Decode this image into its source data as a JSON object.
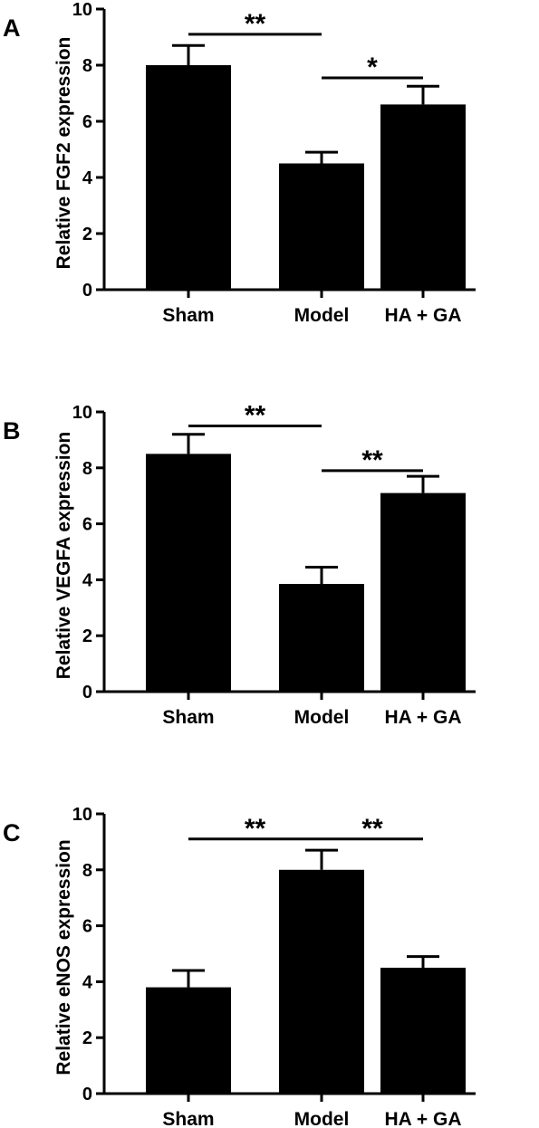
{
  "chart_data": [
    {
      "type": "bar",
      "panel_label": "A",
      "categories": [
        "Sham",
        "Model",
        "HA + GA"
      ],
      "values": [
        8.0,
        4.5,
        6.6
      ],
      "errors": [
        0.7,
        0.4,
        0.65
      ],
      "ylabel": "Relative FGF2 expression",
      "xlabel": "",
      "ylim": [
        0,
        10
      ],
      "yticks": [
        "0",
        "2",
        "4",
        "6",
        "8",
        "10"
      ],
      "bar_color": "#000000",
      "grid": false,
      "significance": [
        {
          "from": 0,
          "to": 1,
          "label": "**",
          "y": 9.1
        },
        {
          "from": 1,
          "to": 2,
          "label": "*",
          "y": 7.55
        }
      ]
    },
    {
      "type": "bar",
      "panel_label": "B",
      "categories": [
        "Sham",
        "Model",
        "HA + GA"
      ],
      "values": [
        8.5,
        3.85,
        7.1
      ],
      "errors": [
        0.7,
        0.6,
        0.6
      ],
      "ylabel": "Relative VEGFA expression",
      "xlabel": "",
      "ylim": [
        0,
        10
      ],
      "yticks": [
        "0",
        "2",
        "4",
        "6",
        "8",
        "10"
      ],
      "bar_color": "#000000",
      "grid": false,
      "significance": [
        {
          "from": 0,
          "to": 1,
          "label": "**",
          "y": 9.5
        },
        {
          "from": 1,
          "to": 2,
          "label": "**",
          "y": 7.9
        }
      ]
    },
    {
      "type": "bar",
      "panel_label": "C",
      "categories": [
        "Sham",
        "Model",
        "HA + GA"
      ],
      "values": [
        3.8,
        8.0,
        4.5
      ],
      "errors": [
        0.6,
        0.7,
        0.4
      ],
      "ylabel": "Relative eNOS expression",
      "xlabel": "",
      "ylim": [
        0,
        10
      ],
      "yticks": [
        "0",
        "2",
        "4",
        "6",
        "8",
        "10"
      ],
      "bar_color": "#000000",
      "grid": false,
      "significance": [
        {
          "from": 0,
          "to": 1,
          "label": "**",
          "y": 9.1
        },
        {
          "from": 1,
          "to": 2,
          "label": "**",
          "y": 9.1
        }
      ]
    }
  ]
}
